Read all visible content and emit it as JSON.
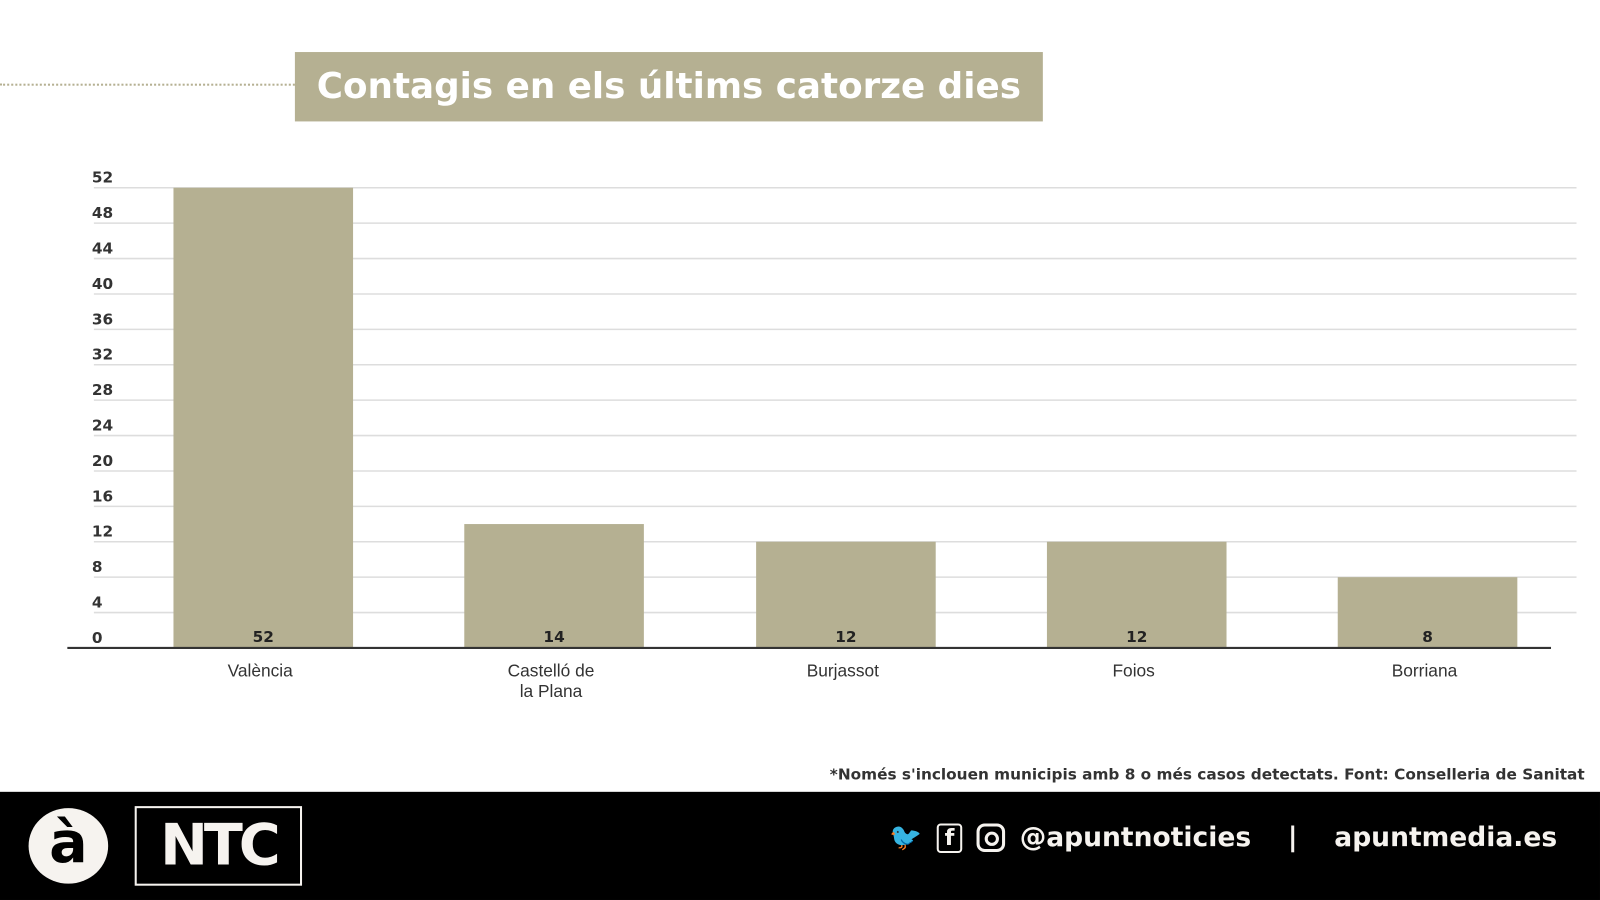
{
  "title": "Contagis en els últims catorze dies",
  "note": "*Només s'inclouen municipis amb 8 o més casos detectats. Font: Conselleria de Sanitat",
  "colors": {
    "bar": "#b5b092",
    "footer": "#000000"
  },
  "footer": {
    "logo_a": "à",
    "logo_ntc": "NTC",
    "handle": "@apuntnoticies",
    "separator": "|",
    "site": "apuntmedia.es",
    "icons": [
      "twitter-icon",
      "facebook-icon",
      "instagram-icon"
    ]
  },
  "chart_data": {
    "type": "bar",
    "title": "Contagis en els últims catorze dies",
    "categories": [
      "València",
      "Castelló de la Plana",
      "Burjassot",
      "Foios",
      "Borriana"
    ],
    "category_lines": [
      [
        "València"
      ],
      [
        "Castelló de",
        "la Plana"
      ],
      [
        "Burjassot"
      ],
      [
        "Foios"
      ],
      [
        "Borriana"
      ]
    ],
    "values": [
      52,
      14,
      12,
      12,
      8
    ],
    "ylim": [
      0,
      52
    ],
    "yticks": [
      0,
      4,
      8,
      12,
      16,
      20,
      24,
      28,
      32,
      36,
      40,
      44,
      48,
      52
    ],
    "grid": true,
    "data_labels": "inside-bottom"
  }
}
